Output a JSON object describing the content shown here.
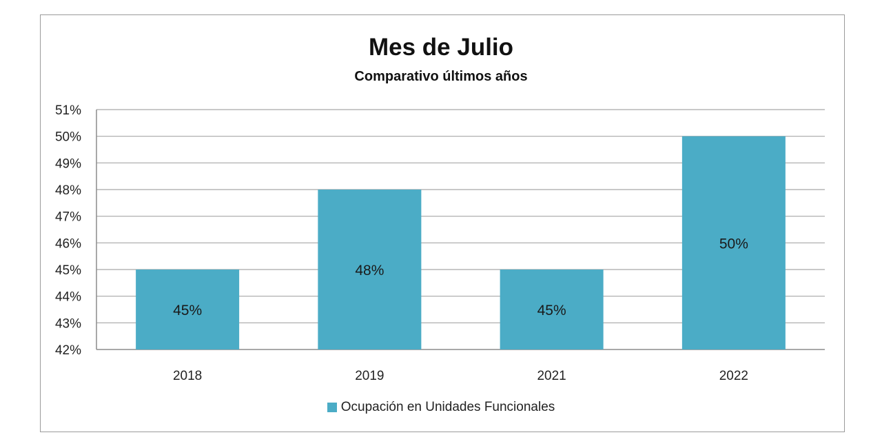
{
  "chart_data": {
    "type": "bar",
    "title": "Mes de Julio",
    "subtitle": "Comparativo últimos años",
    "categories": [
      "2018",
      "2019",
      "2021",
      "2022"
    ],
    "series": [
      {
        "name": "Ocupación en Unidades Funcionales",
        "values": [
          45,
          48,
          45,
          50
        ],
        "labels": [
          "45%",
          "48%",
          "45%",
          "50%"
        ],
        "color": "#4bacc6"
      }
    ],
    "ylim": [
      42,
      51
    ],
    "yticks": [
      "42%",
      "43%",
      "44%",
      "45%",
      "46%",
      "47%",
      "48%",
      "49%",
      "50%",
      "51%"
    ],
    "grid": true,
    "legend_position": "bottom"
  }
}
